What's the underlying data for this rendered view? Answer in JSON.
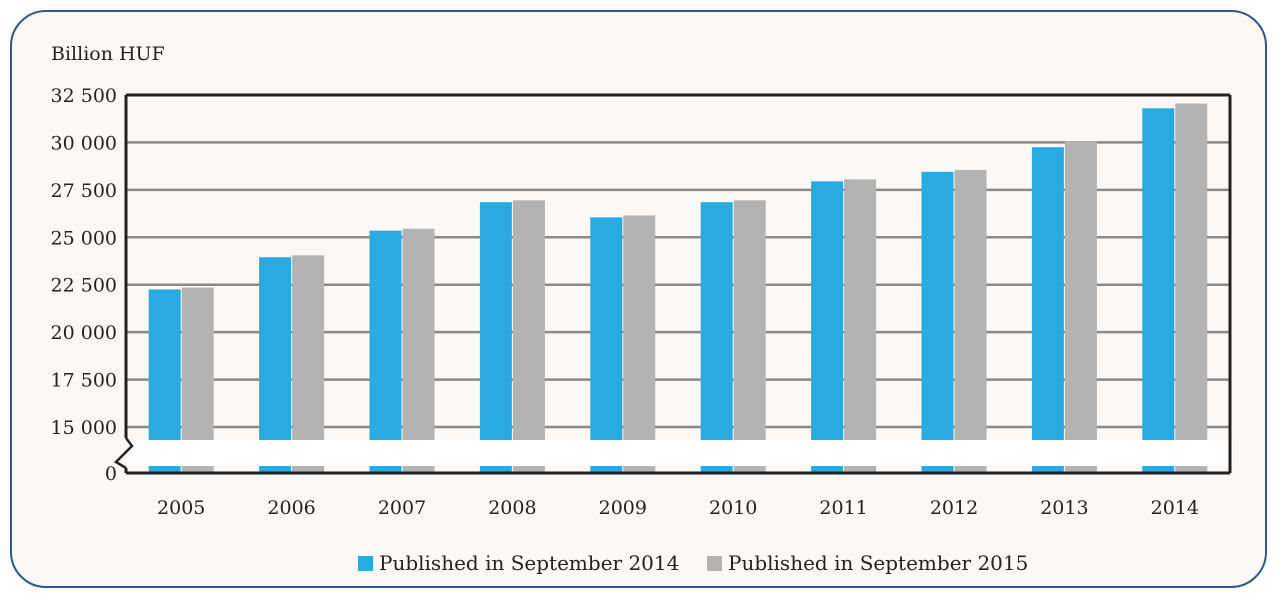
{
  "chart_data": {
    "type": "bar",
    "ylabel": "Billion HUF",
    "categories": [
      "2005",
      "2006",
      "2007",
      "2008",
      "2009",
      "2010",
      "2011",
      "2012",
      "2013",
      "2014"
    ],
    "series": [
      {
        "name": "Published in September 2014",
        "color": "#29abe2",
        "values": [
          22250,
          23950,
          25350,
          26850,
          26050,
          26850,
          27950,
          28450,
          29750,
          31800
        ]
      },
      {
        "name": "Published in September 2015",
        "color": "#b3b3b3",
        "values": [
          22350,
          24050,
          25450,
          26950,
          26150,
          26950,
          28050,
          28550,
          30050,
          32050
        ]
      }
    ],
    "y_ticks": [
      {
        "value": 32500,
        "label": "32 500"
      },
      {
        "value": 30000,
        "label": "30 000"
      },
      {
        "value": 27500,
        "label": "27 500"
      },
      {
        "value": 25000,
        "label": "25 000"
      },
      {
        "value": 22500,
        "label": "22 500"
      },
      {
        "value": 20000,
        "label": "20 000"
      },
      {
        "value": 17500,
        "label": "17 500"
      },
      {
        "value": 15000,
        "label": "15 000"
      },
      {
        "value": 0,
        "label": "0"
      }
    ],
    "ylim": [
      0,
      32500
    ],
    "axis_break": [
      0,
      15000
    ],
    "grid": true,
    "legend_position": "bottom"
  }
}
